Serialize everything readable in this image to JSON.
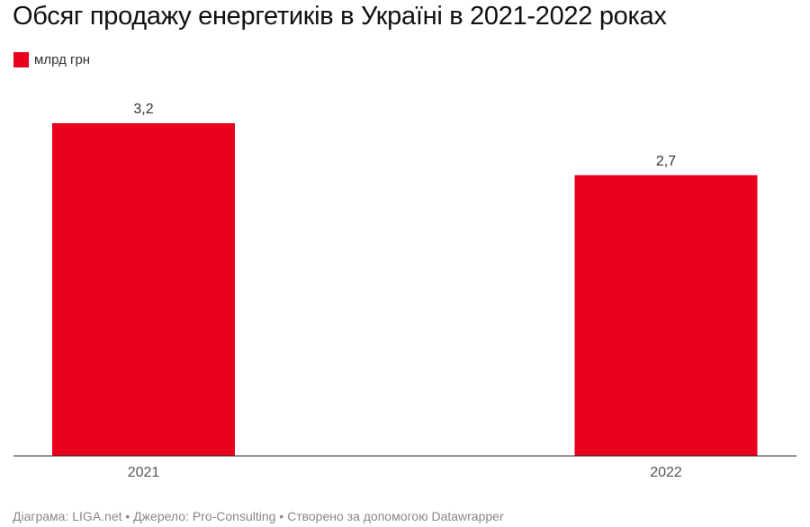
{
  "chart_data": {
    "type": "bar",
    "title": "Обсяг продажу енергетиків в Україні в 2021-2022 роках",
    "categories": [
      "2021",
      "2022"
    ],
    "series": [
      {
        "name": "млрд грн",
        "values": [
          3.2,
          2.7
        ],
        "value_labels": [
          "3,2",
          "2,7"
        ],
        "color": "#e8001c"
      }
    ],
    "ylim": [
      0,
      3.2
    ],
    "grid": false,
    "legend_position": "top-left"
  },
  "footer": {
    "text": "Діаграма: LIGA.net • Джерело: Pro-Consulting • Створено за допомогою Datawrapper"
  }
}
